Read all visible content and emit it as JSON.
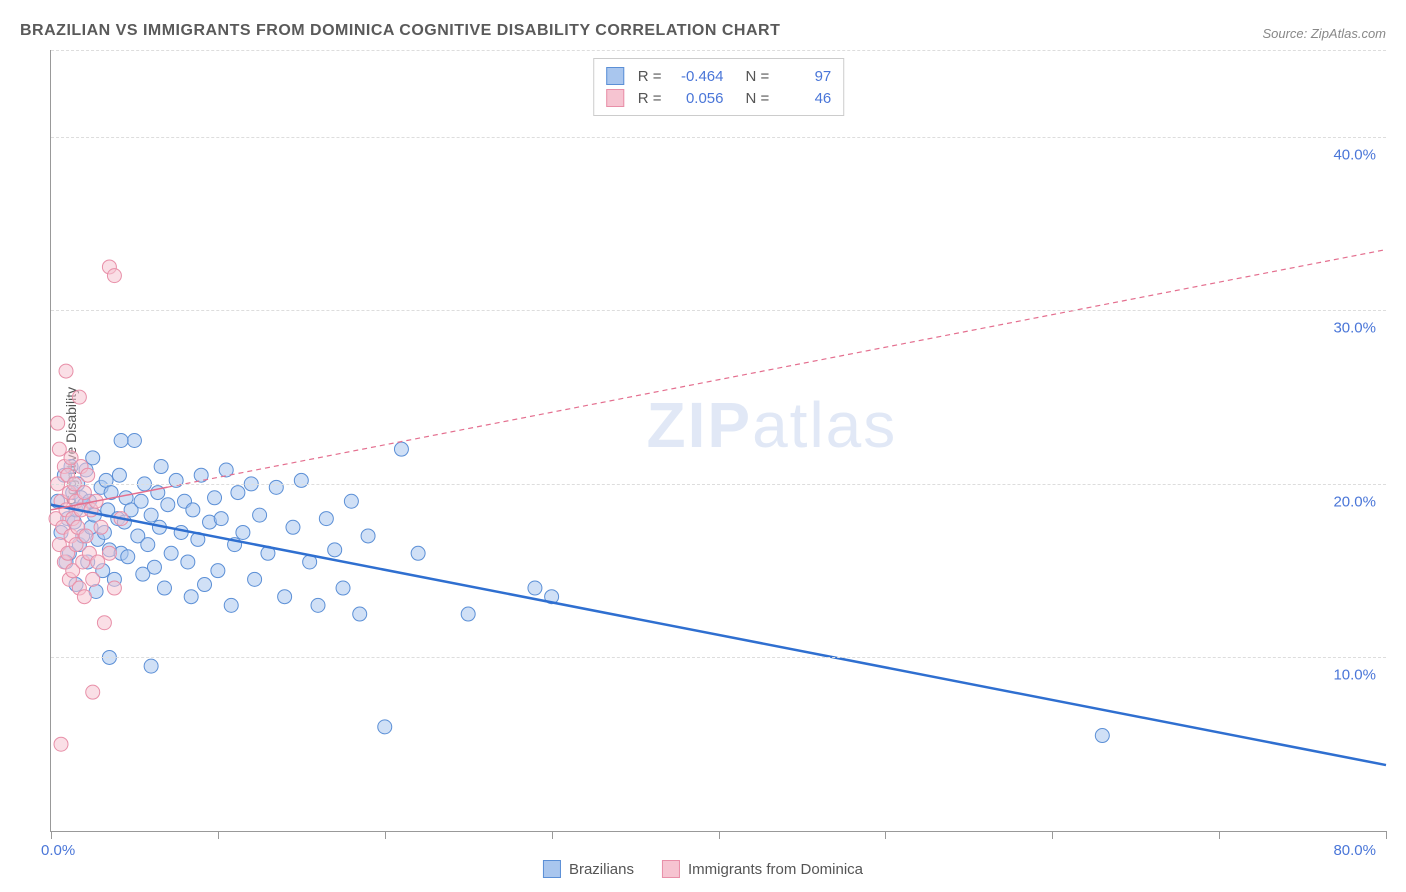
{
  "title": "BRAZILIAN VS IMMIGRANTS FROM DOMINICA COGNITIVE DISABILITY CORRELATION CHART",
  "source": "Source: ZipAtlas.com",
  "ylabel": "Cognitive Disability",
  "watermark_a": "ZIP",
  "watermark_b": "atlas",
  "chart": {
    "type": "scatter",
    "xlim": [
      0,
      80
    ],
    "ylim": [
      0,
      45
    ],
    "yticks": [
      10,
      20,
      30,
      40
    ],
    "ytick_labels": [
      "10.0%",
      "20.0%",
      "30.0%",
      "40.0%"
    ],
    "xticks": [
      0,
      10,
      20,
      30,
      40,
      50,
      60,
      70,
      80
    ],
    "x_origin_label": "0.0%",
    "x_max_label": "80.0%",
    "background_color": "#ffffff",
    "grid_color": "#dddddd",
    "series": [
      {
        "name": "Brazilians",
        "fill": "#a9c6ee",
        "stroke": "#5b8fd6",
        "fill_opacity": 0.55,
        "marker_radius": 7,
        "R": "-0.464",
        "N": "97",
        "trend": {
          "x1": 0,
          "y1": 18.8,
          "x2": 80,
          "y2": 3.8,
          "color": "#2f6fd0",
          "width": 2.5,
          "dash": "none",
          "solid_until_x": 80
        },
        "points": [
          [
            0.4,
            19.0
          ],
          [
            0.6,
            17.2
          ],
          [
            0.8,
            20.5
          ],
          [
            1.0,
            18.0
          ],
          [
            1.1,
            16.0
          ],
          [
            1.2,
            21.0
          ],
          [
            1.3,
            19.5
          ],
          [
            1.4,
            17.8
          ],
          [
            1.5,
            18.5
          ],
          [
            1.6,
            20.0
          ],
          [
            1.7,
            16.5
          ],
          [
            1.8,
            19.2
          ],
          [
            1.9,
            17.0
          ],
          [
            2.0,
            18.8
          ],
          [
            2.1,
            20.8
          ],
          [
            2.2,
            15.5
          ],
          [
            2.3,
            19.0
          ],
          [
            2.4,
            17.5
          ],
          [
            2.5,
            21.5
          ],
          [
            2.6,
            18.2
          ],
          [
            2.8,
            16.8
          ],
          [
            3.0,
            19.8
          ],
          [
            3.1,
            15.0
          ],
          [
            3.2,
            17.2
          ],
          [
            3.3,
            20.2
          ],
          [
            3.4,
            18.5
          ],
          [
            3.5,
            16.2
          ],
          [
            3.6,
            19.5
          ],
          [
            3.8,
            14.5
          ],
          [
            4.0,
            18.0
          ],
          [
            4.1,
            20.5
          ],
          [
            4.2,
            16.0
          ],
          [
            4.4,
            17.8
          ],
          [
            4.5,
            19.2
          ],
          [
            4.6,
            15.8
          ],
          [
            4.8,
            18.5
          ],
          [
            5.0,
            22.5
          ],
          [
            5.2,
            17.0
          ],
          [
            5.4,
            19.0
          ],
          [
            5.5,
            14.8
          ],
          [
            5.6,
            20.0
          ],
          [
            5.8,
            16.5
          ],
          [
            6.0,
            18.2
          ],
          [
            6.2,
            15.2
          ],
          [
            6.4,
            19.5
          ],
          [
            6.5,
            17.5
          ],
          [
            6.6,
            21.0
          ],
          [
            6.8,
            14.0
          ],
          [
            7.0,
            18.8
          ],
          [
            7.2,
            16.0
          ],
          [
            7.5,
            20.2
          ],
          [
            7.8,
            17.2
          ],
          [
            8.0,
            19.0
          ],
          [
            8.2,
            15.5
          ],
          [
            8.4,
            13.5
          ],
          [
            8.5,
            18.5
          ],
          [
            8.8,
            16.8
          ],
          [
            9.0,
            20.5
          ],
          [
            9.2,
            14.2
          ],
          [
            9.5,
            17.8
          ],
          [
            9.8,
            19.2
          ],
          [
            10.0,
            15.0
          ],
          [
            10.2,
            18.0
          ],
          [
            10.5,
            20.8
          ],
          [
            10.8,
            13.0
          ],
          [
            11.0,
            16.5
          ],
          [
            11.2,
            19.5
          ],
          [
            11.5,
            17.2
          ],
          [
            12.0,
            20.0
          ],
          [
            12.2,
            14.5
          ],
          [
            12.5,
            18.2
          ],
          [
            13.0,
            16.0
          ],
          [
            13.5,
            19.8
          ],
          [
            14.0,
            13.5
          ],
          [
            14.5,
            17.5
          ],
          [
            15.0,
            20.2
          ],
          [
            15.5,
            15.5
          ],
          [
            16.0,
            13.0
          ],
          [
            16.5,
            18.0
          ],
          [
            17.0,
            16.2
          ],
          [
            17.5,
            14.0
          ],
          [
            18.0,
            19.0
          ],
          [
            18.5,
            12.5
          ],
          [
            19.0,
            17.0
          ],
          [
            21.0,
            22.0
          ],
          [
            22.0,
            16.0
          ],
          [
            25.0,
            12.5
          ],
          [
            29.0,
            14.0
          ],
          [
            30.0,
            13.5
          ],
          [
            63.0,
            5.5
          ],
          [
            20.0,
            6.0
          ],
          [
            6.0,
            9.5
          ],
          [
            3.5,
            10.0
          ],
          [
            4.2,
            22.5
          ],
          [
            2.7,
            13.8
          ],
          [
            1.5,
            14.2
          ],
          [
            0.9,
            15.5
          ]
        ]
      },
      {
        "name": "Immigrants from Dominica",
        "fill": "#f6c4d1",
        "stroke": "#e88fa8",
        "fill_opacity": 0.55,
        "marker_radius": 7,
        "R": "0.056",
        "N": "46",
        "trend": {
          "x1": 0,
          "y1": 18.5,
          "x2": 80,
          "y2": 33.5,
          "color": "#e46f8f",
          "width": 1.5,
          "dash": "5,4",
          "solid_until_x": 7
        },
        "points": [
          [
            0.3,
            18.0
          ],
          [
            0.4,
            20.0
          ],
          [
            0.5,
            16.5
          ],
          [
            0.5,
            22.0
          ],
          [
            0.6,
            19.0
          ],
          [
            0.7,
            17.5
          ],
          [
            0.8,
            21.0
          ],
          [
            0.8,
            15.5
          ],
          [
            0.9,
            18.5
          ],
          [
            0.9,
            26.5
          ],
          [
            1.0,
            20.5
          ],
          [
            1.0,
            16.0
          ],
          [
            1.1,
            19.5
          ],
          [
            1.1,
            14.5
          ],
          [
            1.2,
            17.0
          ],
          [
            1.2,
            21.5
          ],
          [
            1.3,
            18.0
          ],
          [
            1.3,
            15.0
          ],
          [
            1.4,
            20.0
          ],
          [
            1.5,
            16.5
          ],
          [
            1.5,
            19.0
          ],
          [
            1.6,
            17.5
          ],
          [
            1.7,
            14.0
          ],
          [
            1.8,
            18.5
          ],
          [
            1.8,
            21.0
          ],
          [
            1.9,
            15.5
          ],
          [
            2.0,
            19.5
          ],
          [
            2.0,
            13.5
          ],
          [
            2.1,
            17.0
          ],
          [
            2.2,
            20.5
          ],
          [
            2.3,
            16.0
          ],
          [
            2.4,
            18.5
          ],
          [
            2.5,
            14.5
          ],
          [
            2.7,
            19.0
          ],
          [
            2.8,
            15.5
          ],
          [
            3.0,
            17.5
          ],
          [
            3.2,
            12.0
          ],
          [
            3.5,
            16.0
          ],
          [
            3.8,
            14.0
          ],
          [
            4.2,
            18.0
          ],
          [
            3.5,
            32.5
          ],
          [
            3.8,
            32.0
          ],
          [
            0.6,
            5.0
          ],
          [
            2.5,
            8.0
          ],
          [
            1.7,
            25.0
          ],
          [
            0.4,
            23.5
          ]
        ]
      }
    ]
  },
  "legend_bottom": [
    {
      "label": "Brazilians",
      "fill": "#a9c6ee",
      "stroke": "#5b8fd6"
    },
    {
      "label": "Immigrants from Dominica",
      "fill": "#f6c4d1",
      "stroke": "#e88fa8"
    }
  ]
}
